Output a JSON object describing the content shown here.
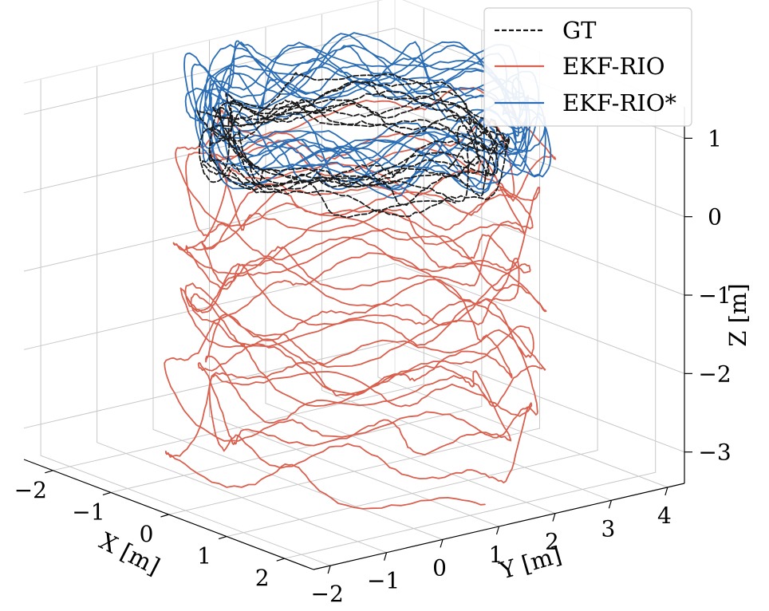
{
  "chart_data": {
    "type": "line3d",
    "title": "",
    "xlabel": "X [m]",
    "ylabel": "Y [m]",
    "zlabel": "Z [m]",
    "xlim": [
      -2.5,
      2.5
    ],
    "ylim": [
      -2.3,
      4.3
    ],
    "zlim": [
      -3.4,
      1.4
    ],
    "x_ticks": [
      -2,
      -1,
      0,
      1,
      2
    ],
    "y_ticks": [
      -2,
      -1,
      0,
      1,
      2,
      3,
      4
    ],
    "z_ticks": [
      1,
      0,
      -1,
      -2,
      -3
    ],
    "x_tick_labels": [
      "−2",
      "−1",
      "0",
      "1",
      "2"
    ],
    "y_tick_labels": [
      "−2",
      "−1",
      "0",
      "1",
      "2",
      "3",
      "4"
    ],
    "z_tick_labels": [
      "1",
      "0",
      "−1",
      "−2",
      "−3"
    ],
    "grid": true,
    "legend_position": "top-right",
    "series": [
      {
        "name": "GT",
        "color": "#1a1a1a",
        "style": "dashed",
        "description": "approximately 9 loops, z ≈ 0.5 to 1.0",
        "loops": 9,
        "z_start": 1.0,
        "z_end": 0.55,
        "radius_x": 1.9,
        "radius_y": 2.2,
        "center_x": 0.0,
        "center_y": 1.0,
        "wobble": 0.25
      },
      {
        "name": "EKF-RIO",
        "color": "#d9604e",
        "style": "solid",
        "description": "spiral drifting downward from z ≈ 0.6 to z ≈ -3.1",
        "loops": 14,
        "z_start": 0.7,
        "z_end": -3.1,
        "radius_x": 2.2,
        "radius_y": 2.7,
        "center_x": 0.0,
        "center_y": 1.1,
        "wobble": 0.35
      },
      {
        "name": "EKF-RIO*",
        "color": "#2a6db5",
        "style": "solid",
        "description": "approximately 12 loops, z ≈ 0.6 to 1.6",
        "loops": 12,
        "z_start": 1.05,
        "z_end": 1.15,
        "radius_x": 2.2,
        "radius_y": 2.6,
        "center_x": 0.0,
        "center_y": 1.2,
        "wobble": 0.45
      }
    ]
  }
}
